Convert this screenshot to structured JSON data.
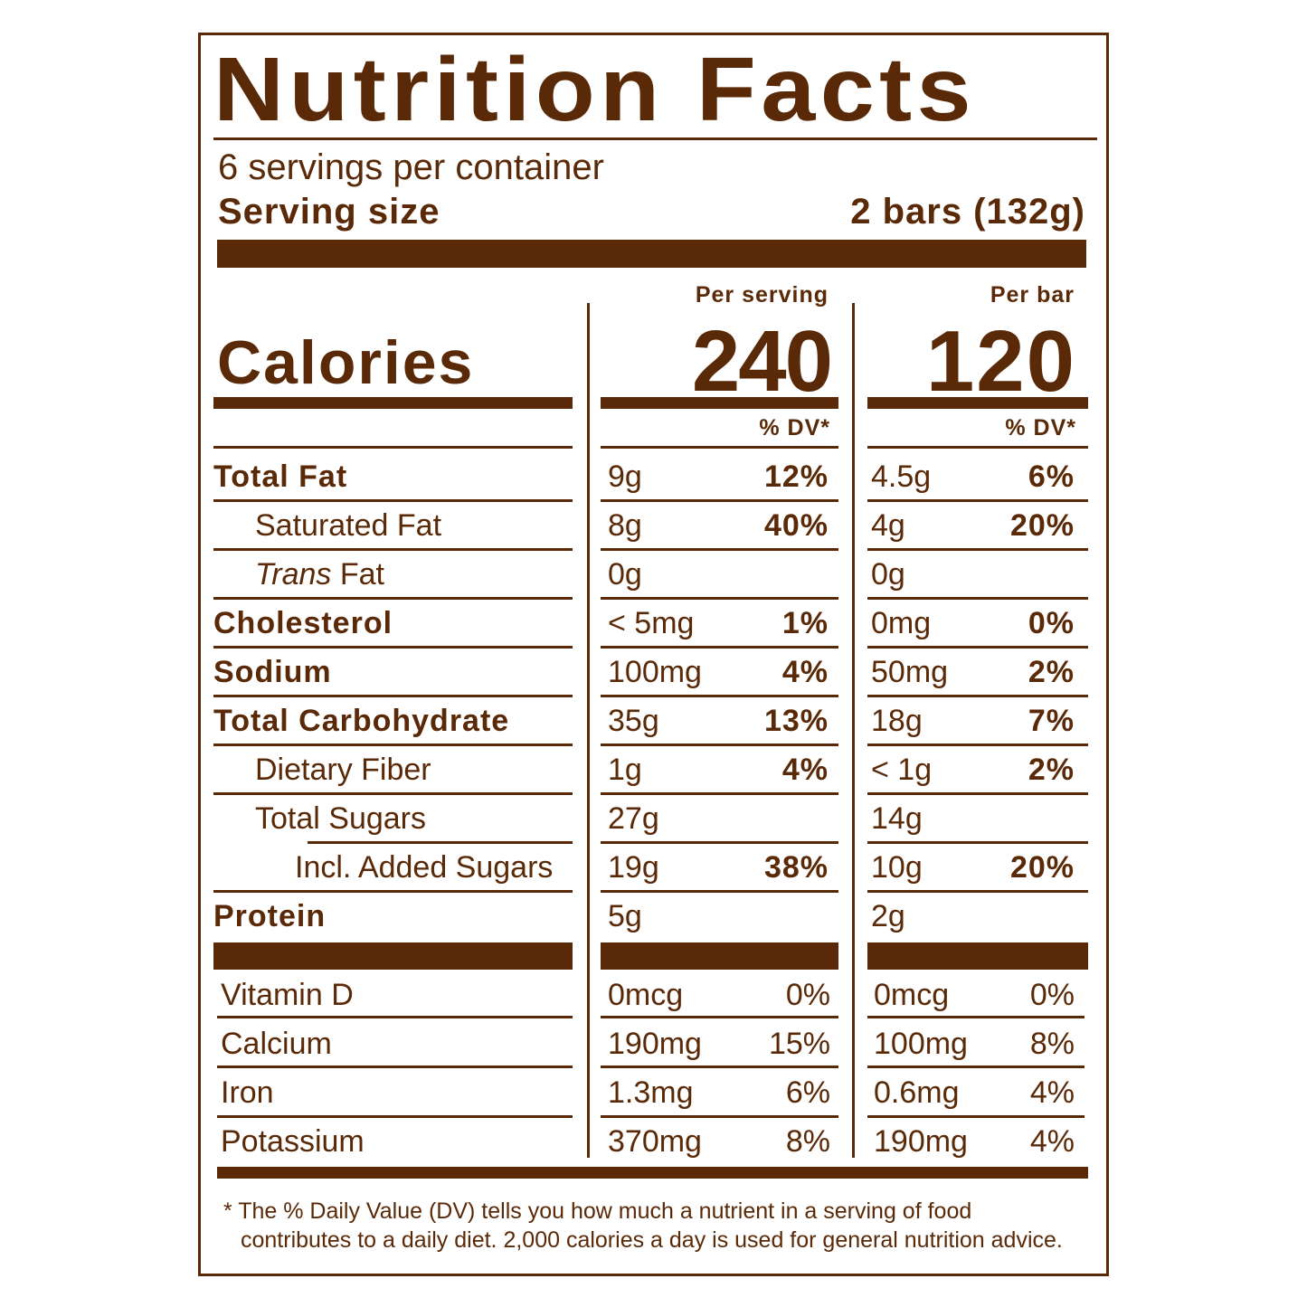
{
  "title": "Nutrition Facts",
  "servings_per_container": "6 servings per container",
  "serving_size_label": "Serving size",
  "serving_size_value": "2 bars (132g)",
  "calories_label": "Calories",
  "columns": [
    {
      "header": "Per serving",
      "calories": "240",
      "dv_header": "% DV*"
    },
    {
      "header": "Per bar",
      "calories": "120",
      "dv_header": "% DV*"
    }
  ],
  "nutrients": [
    {
      "name": "Total Fat",
      "bold": true,
      "indent": 0,
      "values": [
        [
          "9g",
          "12%"
        ],
        [
          "4.5g",
          "6%"
        ]
      ]
    },
    {
      "name": "Saturated Fat",
      "bold": false,
      "indent": 1,
      "values": [
        [
          "8g",
          "40%"
        ],
        [
          "4g",
          "20%"
        ]
      ]
    },
    {
      "name_italic": "Trans",
      "name": " Fat",
      "bold": false,
      "indent": 1,
      "values": [
        [
          "0g",
          ""
        ],
        [
          "0g",
          ""
        ]
      ]
    },
    {
      "name": "Cholesterol",
      "bold": true,
      "indent": 0,
      "values": [
        [
          "< 5mg",
          "1%"
        ],
        [
          "0mg",
          "0%"
        ]
      ]
    },
    {
      "name": "Sodium",
      "bold": true,
      "indent": 0,
      "values": [
        [
          "100mg",
          "4%"
        ],
        [
          "50mg",
          "2%"
        ]
      ]
    },
    {
      "name": "Total Carbohydrate",
      "bold": true,
      "indent": 0,
      "values": [
        [
          "35g",
          "13%"
        ],
        [
          "18g",
          "7%"
        ]
      ]
    },
    {
      "name": "Dietary Fiber",
      "bold": false,
      "indent": 1,
      "values": [
        [
          "1g",
          "4%"
        ],
        [
          "< 1g",
          "2%"
        ]
      ]
    },
    {
      "name": "Total Sugars",
      "bold": false,
      "indent": 1,
      "values": [
        [
          "27g",
          ""
        ],
        [
          "14g",
          ""
        ]
      ]
    },
    {
      "name": "Incl. Added Sugars",
      "bold": false,
      "indent": 2,
      "values": [
        [
          "19g",
          "38%"
        ],
        [
          "10g",
          "20%"
        ]
      ]
    },
    {
      "name": "Protein",
      "bold": true,
      "indent": 0,
      "values": [
        [
          "5g",
          ""
        ],
        [
          "2g",
          ""
        ]
      ]
    }
  ],
  "vitamins": [
    {
      "name": "Vitamin D",
      "values": [
        [
          "0mcg",
          "0%"
        ],
        [
          "0mcg",
          "0%"
        ]
      ]
    },
    {
      "name": "Calcium",
      "values": [
        [
          "190mg",
          "15%"
        ],
        [
          "100mg",
          "8%"
        ]
      ]
    },
    {
      "name": "Iron",
      "values": [
        [
          "1.3mg",
          "6%"
        ],
        [
          "0.6mg",
          "4%"
        ]
      ]
    },
    {
      "name": "Potassium",
      "values": [
        [
          "370mg",
          "8%"
        ],
        [
          "190mg",
          "4%"
        ]
      ]
    }
  ],
  "footnote_line1": "* The % Daily Value (DV) tells you how much a nutrient in a serving of food",
  "footnote_line2": "contributes to a daily diet. 2,000 calories a day is used for general nutrition advice.",
  "colors": {
    "ink": "#5a2a08",
    "background": "#ffffff"
  }
}
